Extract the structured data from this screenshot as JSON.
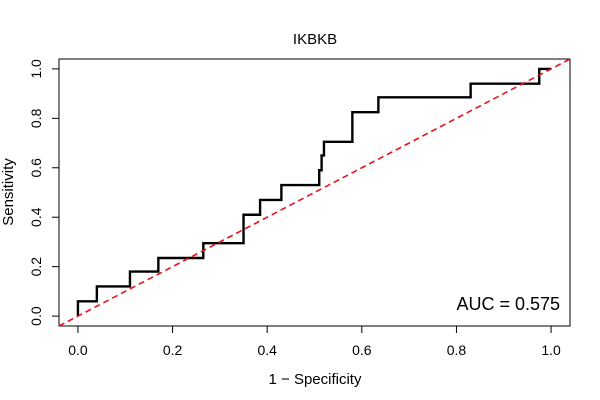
{
  "chart_data": {
    "type": "line",
    "title": "IKBKB",
    "xlabel": "1 − Specificity",
    "ylabel": "Sensitivity",
    "xlim": [
      -0.04,
      1.04
    ],
    "ylim": [
      -0.04,
      1.04
    ],
    "x_ticks": [
      0.0,
      0.2,
      0.4,
      0.6,
      0.8,
      1.0
    ],
    "x_tick_labels": [
      "0.0",
      "0.2",
      "0.4",
      "0.6",
      "0.8",
      "1.0"
    ],
    "y_ticks": [
      0.0,
      0.2,
      0.4,
      0.6,
      0.8,
      1.0
    ],
    "y_tick_labels": [
      "0.0",
      "0.2",
      "0.4",
      "0.6",
      "0.8",
      "1.0"
    ],
    "grid": false,
    "annotation": "AUC = 0.575",
    "series": [
      {
        "color": "#000000",
        "style": "solid",
        "x": [
          0.0,
          0.0,
          0.04,
          0.04,
          0.11,
          0.11,
          0.17,
          0.17,
          0.265,
          0.265,
          0.35,
          0.35,
          0.385,
          0.385,
          0.43,
          0.43,
          0.51,
          0.51,
          0.515,
          0.515,
          0.52,
          0.52,
          0.58,
          0.58,
          0.635,
          0.635,
          0.83,
          0.83,
          0.975,
          0.975,
          1.0
        ],
        "y": [
          0.0,
          0.06,
          0.06,
          0.12,
          0.12,
          0.18,
          0.18,
          0.235,
          0.235,
          0.295,
          0.295,
          0.41,
          0.41,
          0.47,
          0.47,
          0.53,
          0.53,
          0.59,
          0.59,
          0.65,
          0.65,
          0.705,
          0.705,
          0.825,
          0.825,
          0.885,
          0.885,
          0.94,
          0.94,
          1.0,
          1.0
        ]
      },
      {
        "color": "#e8111a",
        "style": "dashed",
        "x": [
          -0.04,
          1.04
        ],
        "y": [
          -0.04,
          1.04
        ]
      }
    ]
  },
  "colors": {
    "roc": "#000000",
    "reference": "#e8111a",
    "axis": "#000000"
  }
}
